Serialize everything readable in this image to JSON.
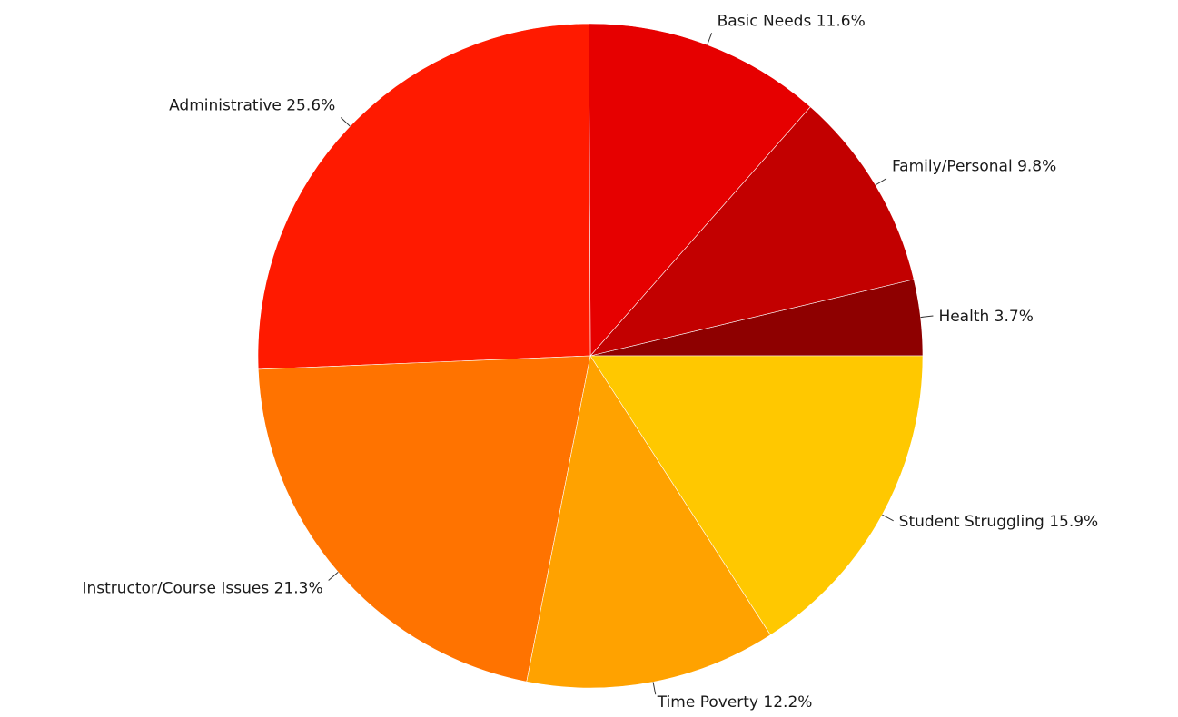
{
  "chart_data": {
    "type": "pie",
    "title": "",
    "start": "3-oclock",
    "direction": "counterclockwise",
    "legend": "none",
    "slices": [
      {
        "label": "Health",
        "value": 3.7,
        "display": "Health  3.7%",
        "color": "#8e0000"
      },
      {
        "label": "Family/Personal",
        "value": 9.8,
        "display": "Family/Personal  9.8%",
        "color": "#c20000"
      },
      {
        "label": "Basic Needs",
        "value": 11.6,
        "display": "Basic Needs  11.6%",
        "color": "#e60000"
      },
      {
        "label": "Administrative",
        "value": 25.6,
        "display": "Administrative  25.6%",
        "color": "#ff1a00"
      },
      {
        "label": "Instructor/Course Issues",
        "value": 21.3,
        "display": "Instructor/Course Issues  21.3%",
        "color": "#ff7300"
      },
      {
        "label": "Time Poverty",
        "value": 12.2,
        "display": "Time Poverty  12.2%",
        "color": "#ffa200"
      },
      {
        "label": "Student Struggling",
        "value": 15.9,
        "display": "Student Struggling  15.9%",
        "color": "#ffc800"
      }
    ]
  }
}
